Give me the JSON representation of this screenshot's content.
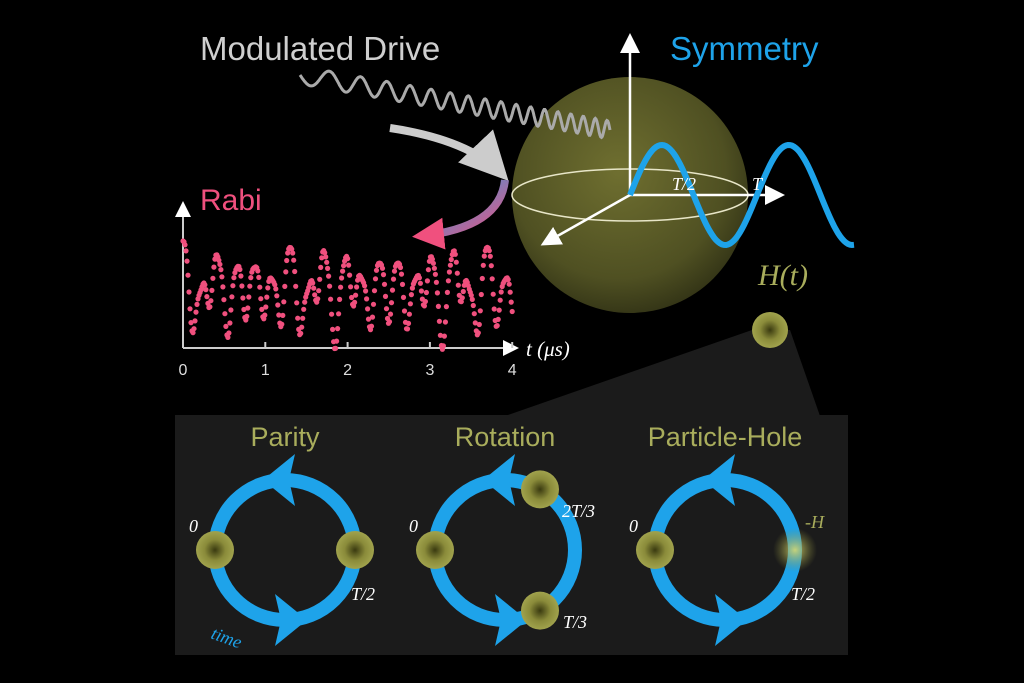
{
  "titles": {
    "modulated_drive": "Modulated Drive",
    "symmetry": "Symmetry",
    "rabi": "Rabi",
    "hamiltonian": "H(t)"
  },
  "rabi_plot": {
    "xlabel": "t (μs)",
    "x_ticks": [
      "0",
      "1",
      "2",
      "3",
      "4"
    ]
  },
  "sine_labels": {
    "half_period": "T/2",
    "period": "T"
  },
  "symmetries": [
    {
      "title": "Parity",
      "labels": {
        "start": "0",
        "mid": "T/2",
        "time": "time"
      }
    },
    {
      "title": "Rotation",
      "labels": {
        "start": "0",
        "third": "T/3",
        "two_thirds": "2T/3"
      }
    },
    {
      "title": "Particle-Hole",
      "labels": {
        "start": "0",
        "mid": "T/2",
        "neg": "-H"
      }
    }
  ],
  "colors": {
    "blue": "#1ea3ea",
    "pink": "#f0507e",
    "olive_text": "#a9ad5c",
    "gray_text": "#cfcfcf",
    "panel": "#1b1b1b"
  }
}
